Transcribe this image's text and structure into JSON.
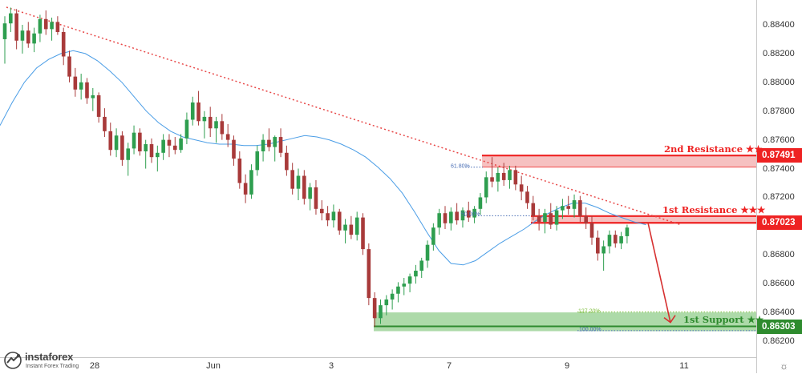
{
  "chart_data": {
    "type": "candlestick",
    "instrument_hint": "",
    "y_axis": {
      "ticks": [
        "0.88400",
        "0.88200",
        "0.88000",
        "0.87800",
        "0.87600",
        "0.87400",
        "0.87200",
        "0.86800",
        "0.86600",
        "0.86400",
        "0.86200"
      ],
      "ylim": [
        0.8612,
        0.886
      ]
    },
    "x_axis": {
      "ticks": [
        "28",
        "Jun",
        "3",
        "7",
        "9",
        "11"
      ]
    },
    "candles": [
      [
        0.883,
        0.8846,
        0.8813,
        0.8841
      ],
      [
        0.8841,
        0.8852,
        0.8835,
        0.8848
      ],
      [
        0.8848,
        0.8851,
        0.8823,
        0.8829
      ],
      [
        0.8829,
        0.884,
        0.882,
        0.8836
      ],
      [
        0.8836,
        0.8842,
        0.8824,
        0.8827
      ],
      [
        0.8827,
        0.8838,
        0.8821,
        0.8834
      ],
      [
        0.8834,
        0.8847,
        0.8828,
        0.8844
      ],
      [
        0.8844,
        0.885,
        0.8833,
        0.8837
      ],
      [
        0.8837,
        0.8845,
        0.8829,
        0.8842
      ],
      [
        0.8842,
        0.8846,
        0.8833,
        0.8835
      ],
      [
        0.8835,
        0.8838,
        0.8812,
        0.8818
      ],
      [
        0.8818,
        0.8822,
        0.88,
        0.8804
      ],
      [
        0.8804,
        0.881,
        0.879,
        0.8795
      ],
      [
        0.8795,
        0.8806,
        0.8788,
        0.88
      ],
      [
        0.88,
        0.8803,
        0.8785,
        0.8789
      ],
      [
        0.8789,
        0.8796,
        0.878,
        0.8791
      ],
      [
        0.8791,
        0.8793,
        0.8772,
        0.8776
      ],
      [
        0.8776,
        0.8782,
        0.8762,
        0.8766
      ],
      [
        0.8766,
        0.8772,
        0.8749,
        0.8753
      ],
      [
        0.8753,
        0.8768,
        0.8748,
        0.8763
      ],
      [
        0.8763,
        0.8766,
        0.8742,
        0.8746
      ],
      [
        0.8746,
        0.8758,
        0.8735,
        0.8754
      ],
      [
        0.8754,
        0.877,
        0.875,
        0.8765
      ],
      [
        0.8765,
        0.8768,
        0.8749,
        0.8752
      ],
      [
        0.8752,
        0.876,
        0.874,
        0.8757
      ],
      [
        0.8757,
        0.8761,
        0.8744,
        0.8748
      ],
      [
        0.8748,
        0.8756,
        0.8738,
        0.8751
      ],
      [
        0.8751,
        0.8764,
        0.8746,
        0.876
      ],
      [
        0.876,
        0.8764,
        0.8748,
        0.8756
      ],
      [
        0.8756,
        0.8762,
        0.875,
        0.8753
      ],
      [
        0.8753,
        0.8764,
        0.8751,
        0.8761
      ],
      [
        0.8761,
        0.8779,
        0.8757,
        0.8774
      ],
      [
        0.8774,
        0.879,
        0.877,
        0.8786
      ],
      [
        0.8786,
        0.8794,
        0.877,
        0.8773
      ],
      [
        0.8773,
        0.878,
        0.8761,
        0.8776
      ],
      [
        0.8776,
        0.8783,
        0.8762,
        0.8768
      ],
      [
        0.8768,
        0.8776,
        0.8758,
        0.8773
      ],
      [
        0.8773,
        0.8778,
        0.876,
        0.8764
      ],
      [
        0.8764,
        0.8771,
        0.8755,
        0.876
      ],
      [
        0.876,
        0.8763,
        0.8742,
        0.8747
      ],
      [
        0.8747,
        0.8752,
        0.8726,
        0.873
      ],
      [
        0.873,
        0.8736,
        0.8716,
        0.8722
      ],
      [
        0.8722,
        0.8743,
        0.8719,
        0.8739
      ],
      [
        0.8739,
        0.8756,
        0.8735,
        0.8752
      ],
      [
        0.8752,
        0.8764,
        0.8745,
        0.876
      ],
      [
        0.876,
        0.8768,
        0.8752,
        0.8755
      ],
      [
        0.8755,
        0.8763,
        0.8745,
        0.8762
      ],
      [
        0.8762,
        0.8768,
        0.8748,
        0.8751
      ],
      [
        0.8751,
        0.8756,
        0.8735,
        0.8739
      ],
      [
        0.8739,
        0.8744,
        0.8722,
        0.8726
      ],
      [
        0.8726,
        0.874,
        0.8718,
        0.8735
      ],
      [
        0.8735,
        0.8739,
        0.8715,
        0.8719
      ],
      [
        0.8719,
        0.873,
        0.8711,
        0.8727
      ],
      [
        0.8727,
        0.8732,
        0.8708,
        0.8712
      ],
      [
        0.8712,
        0.8718,
        0.8704,
        0.8709
      ],
      [
        0.8709,
        0.8714,
        0.87,
        0.8704
      ],
      [
        0.8704,
        0.8715,
        0.8699,
        0.871
      ],
      [
        0.871,
        0.8712,
        0.8694,
        0.8697
      ],
      [
        0.8697,
        0.8705,
        0.8688,
        0.8701
      ],
      [
        0.8701,
        0.8707,
        0.8691,
        0.8694
      ],
      [
        0.8694,
        0.871,
        0.869,
        0.8706
      ],
      [
        0.8706,
        0.8709,
        0.868,
        0.8684
      ],
      [
        0.8684,
        0.8688,
        0.8645,
        0.865
      ],
      [
        0.865,
        0.8654,
        0.863,
        0.8636
      ],
      [
        0.8636,
        0.8649,
        0.8632,
        0.8645
      ],
      [
        0.8645,
        0.8652,
        0.8638,
        0.8649
      ],
      [
        0.8649,
        0.8656,
        0.8642,
        0.8653
      ],
      [
        0.8653,
        0.8661,
        0.8647,
        0.8658
      ],
      [
        0.8658,
        0.8664,
        0.8652,
        0.866
      ],
      [
        0.866,
        0.8667,
        0.8654,
        0.8665
      ],
      [
        0.8665,
        0.8673,
        0.866,
        0.8669
      ],
      [
        0.8669,
        0.8678,
        0.8664,
        0.8676
      ],
      [
        0.8676,
        0.869,
        0.8671,
        0.8687
      ],
      [
        0.8687,
        0.8702,
        0.8683,
        0.8699
      ],
      [
        0.8699,
        0.8712,
        0.8694,
        0.8709
      ],
      [
        0.8709,
        0.8714,
        0.8698,
        0.8702
      ],
      [
        0.8702,
        0.8713,
        0.8697,
        0.871
      ],
      [
        0.871,
        0.8716,
        0.8701,
        0.8704
      ],
      [
        0.8704,
        0.8713,
        0.8699,
        0.8711
      ],
      [
        0.8711,
        0.8717,
        0.8703,
        0.8706
      ],
      [
        0.8706,
        0.8714,
        0.8702,
        0.8712
      ],
      [
        0.8712,
        0.8723,
        0.8708,
        0.872
      ],
      [
        0.872,
        0.8738,
        0.8716,
        0.8734
      ],
      [
        0.8734,
        0.8748,
        0.8727,
        0.8731
      ],
      [
        0.8731,
        0.8741,
        0.8724,
        0.8737
      ],
      [
        0.8737,
        0.8744,
        0.8728,
        0.8732
      ],
      [
        0.8732,
        0.8742,
        0.8726,
        0.8739
      ],
      [
        0.8739,
        0.8742,
        0.8725,
        0.8729
      ],
      [
        0.8729,
        0.8735,
        0.8718,
        0.8724
      ],
      [
        0.8724,
        0.8728,
        0.8712,
        0.8716
      ],
      [
        0.8716,
        0.8721,
        0.8704,
        0.8707
      ],
      [
        0.8707,
        0.8712,
        0.8697,
        0.8703
      ],
      [
        0.8703,
        0.8712,
        0.8695,
        0.8709
      ],
      [
        0.8709,
        0.8716,
        0.8698,
        0.8701
      ],
      [
        0.8701,
        0.8714,
        0.8697,
        0.8711
      ],
      [
        0.8711,
        0.8719,
        0.8705,
        0.8714
      ],
      [
        0.8714,
        0.8721,
        0.8708,
        0.8712
      ],
      [
        0.8712,
        0.8722,
        0.8706,
        0.8718
      ],
      [
        0.8718,
        0.8721,
        0.8703,
        0.8707
      ],
      [
        0.8707,
        0.8713,
        0.8698,
        0.8702
      ],
      [
        0.8702,
        0.8707,
        0.8687,
        0.8692
      ],
      [
        0.8692,
        0.8697,
        0.8676,
        0.8681
      ],
      [
        0.8681,
        0.869,
        0.8669,
        0.8686
      ],
      [
        0.8686,
        0.8697,
        0.8681,
        0.8694
      ],
      [
        0.8694,
        0.8697,
        0.8685,
        0.8688
      ],
      [
        0.8688,
        0.8696,
        0.8684,
        0.8693
      ],
      [
        0.8693,
        0.8701,
        0.8688,
        0.8699
      ]
    ],
    "series": [
      {
        "values": [
          0.877,
          0.8786,
          0.88,
          0.881,
          0.8816,
          0.882,
          0.8822,
          0.882,
          0.8815,
          0.8808,
          0.88,
          0.879,
          0.878,
          0.8772,
          0.8766,
          0.8762,
          0.876,
          0.8758,
          0.8757,
          0.8757,
          0.8756,
          0.8756,
          0.8757,
          0.8759,
          0.8761,
          0.8763,
          0.8762,
          0.876,
          0.8757,
          0.8753,
          0.8748,
          0.8741,
          0.8733,
          0.8723,
          0.871,
          0.8696,
          0.8683,
          0.8674,
          0.8673,
          0.8676,
          0.8682,
          0.8688,
          0.8693,
          0.8698,
          0.8704,
          0.8709,
          0.8713,
          0.8716,
          0.8716,
          0.8713,
          0.8709,
          0.8706,
          0.8703,
          0.8701
        ]
      }
    ],
    "resistance_zones": [
      {
        "label": "2nd Resistance ★★",
        "price_badge": "0.87491",
        "top": 0.87491,
        "bottom": 0.8741
      },
      {
        "label": "1st Resistance ★★★",
        "price_badge": "0.87023",
        "top": 0.8707,
        "bottom": 0.87023
      }
    ],
    "support_zones": [
      {
        "label": "1st Support ★★",
        "price_badge": "0.86303",
        "top": 0.864,
        "bottom": 0.86303
      }
    ],
    "fib_labels": [
      {
        "text": "61.80%",
        "price": 0.8741
      },
      {
        "text": "50.00%",
        "price": 0.87072
      },
      {
        "text": "127.20%",
        "price": 0.86403
      },
      {
        "text": "100.00%",
        "price": 0.86273
      }
    ],
    "colors": {
      "bull": "#2e9e4f",
      "bear": "#a83a3a",
      "ma": "#4a9de6",
      "resistance": "#ee2222",
      "support": "#2e8b2e",
      "trendline": "#e84848"
    },
    "grid": false,
    "legend": "none"
  },
  "branding": {
    "name": "instaforex",
    "tagline": "Instant Forex Trading"
  },
  "icons": {
    "settings": "gear-icon",
    "logo": "instaforex-logo-icon"
  }
}
